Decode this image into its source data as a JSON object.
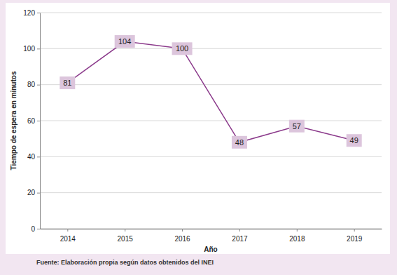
{
  "chart_data": {
    "type": "line",
    "categories": [
      "2014",
      "2015",
      "2016",
      "2017",
      "2018",
      "2019"
    ],
    "values": [
      81,
      104,
      100,
      48,
      57,
      49
    ],
    "color": "#8b3a8b",
    "xlabel": "Año",
    "ylabel": "Tiempo de espera en minutos",
    "ylim": [
      0,
      120
    ],
    "yticks": [
      0,
      20,
      40,
      60,
      80,
      100,
      120
    ],
    "grid": true,
    "data_labels": true,
    "annotations": [
      "Fuente: Elaboración propia según datos obtenidos del INEI"
    ]
  }
}
